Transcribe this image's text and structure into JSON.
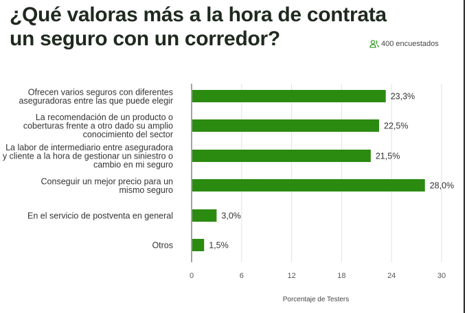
{
  "title_lines": [
    "¿Qué valoras más a la hora de contrata",
    "un seguro con un corredor?"
  ],
  "respondents": {
    "icon": "users-icon",
    "label": "400 encuestados"
  },
  "colors": {
    "bar": "#2b8a10",
    "title": "#1f2a1f",
    "icon": "#3a9a2a"
  },
  "chart_data": {
    "type": "bar",
    "orientation": "horizontal",
    "categories": [
      [
        "Ofrecen varios seguros con diferentes",
        "aseguradoras entre las que puede elegir"
      ],
      [
        "La recomendación de un producto o",
        "coberturas frente a otro dado su amplio",
        "conocimiento del sector"
      ],
      [
        "La labor de intermediario entre aseguradora",
        "y cliente a la hora de gestionar un siniestro o",
        "cambio en mi seguro"
      ],
      [
        "Conseguir un mejor precio para un",
        "mismo seguro"
      ],
      [
        "En el servicio de postventa en general"
      ],
      [
        "Otros"
      ]
    ],
    "values": [
      23.3,
      22.5,
      21.5,
      28.0,
      3.0,
      1.5
    ],
    "data_labels": [
      "23,3%",
      "22,5%",
      "21,5%",
      "28,0%",
      "3,0%",
      "1,5%"
    ],
    "xlabel": "Porcentaje de Testers",
    "xlim": [
      0,
      30
    ],
    "xticks": [
      "0",
      "6",
      "12",
      "18",
      "24",
      "30"
    ],
    "grid": true
  }
}
